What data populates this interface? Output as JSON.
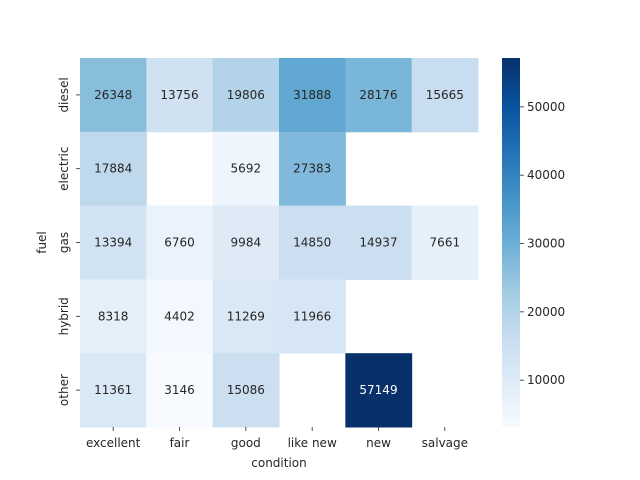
{
  "chart_data": {
    "type": "heatmap",
    "xlabel": "condition",
    "ylabel": "fuel",
    "x_categories": [
      "excellent",
      "fair",
      "good",
      "like new",
      "new",
      "salvage"
    ],
    "y_categories": [
      "diesel",
      "electric",
      "gas",
      "hybrid",
      "other"
    ],
    "values": [
      [
        26348,
        13756,
        19806,
        31888,
        28176,
        15665
      ],
      [
        17884,
        null,
        5692,
        27383,
        null,
        null
      ],
      [
        13394,
        6760,
        9984,
        14850,
        14937,
        7661
      ],
      [
        8318,
        4402,
        11269,
        11966,
        null,
        null
      ],
      [
        11361,
        3146,
        15086,
        null,
        57149,
        null
      ]
    ],
    "colorbar": {
      "min": 3146,
      "max": 57149,
      "ticks": [
        10000,
        20000,
        30000,
        40000,
        50000
      ],
      "colormap": "Blues"
    },
    "annotations": true,
    "grid": false
  }
}
